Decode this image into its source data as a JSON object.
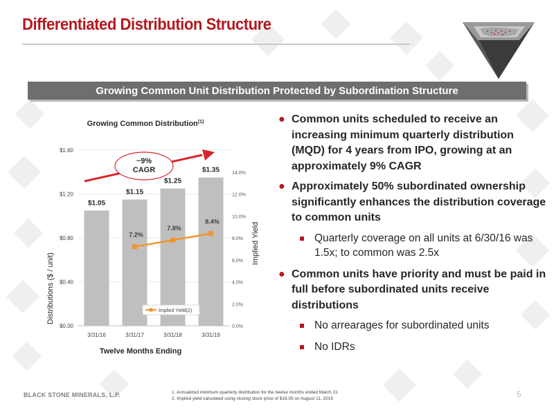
{
  "slide": {
    "title": "Differentiated Distribution Structure",
    "banner": "Growing Common Unit Distribution Protected by Subordination Structure",
    "page_number": "5",
    "company": "BLACK STONE MINERALS, L.P.",
    "footnotes": [
      "1.   Annualized minimum quarterly distribution for the twelve months ended March 31",
      "2.   Implied yield calculated using closing stock price of $16.05 on August 11, 2016"
    ]
  },
  "bullets": [
    {
      "level": 1,
      "text": "Common units scheduled to receive an increasing minimum quarterly distribution (MQD) for 4 years from IPO, growing at an approximately 9% CAGR"
    },
    {
      "level": 1,
      "text": "Approximately 50% subordinated ownership significantly enhances the distribution coverage to common units"
    },
    {
      "level": 2,
      "text": "Quarterly coverage on all units at 6/30/16 was 1.5x; to common was 2.5x"
    },
    {
      "level": 1,
      "text": "Common units have priority and must be paid in full before subordinated units receive distributions"
    },
    {
      "level": 2,
      "text": "No arrearages for subordinated units"
    },
    {
      "level": 2,
      "text": "No IDRs"
    }
  ],
  "chart_data": {
    "type": "bar",
    "title": "Growing Common Distribution",
    "title_superscript": "(1)",
    "xlabel": "Twelve Months Ending",
    "ylabel": "Distributions ($ / unit)",
    "ylabel_right": "Implied Yield",
    "categories": [
      "3/31/16",
      "3/31/17",
      "3/31/18",
      "3/31/19"
    ],
    "ylim": [
      0,
      1.6
    ],
    "yticks": [
      "$0.00",
      "$0.40",
      "$0.80",
      "$1.20",
      "$1.60"
    ],
    "ylim_right": [
      0,
      16
    ],
    "yticks_right": [
      "0.0%",
      "2.0%",
      "4.0%",
      "6.0%",
      "8.0%",
      "10.0%",
      "12.0%",
      "14.0%"
    ],
    "series": [
      {
        "kind": "bar",
        "values": [
          1.05,
          1.15,
          1.25,
          1.35
        ],
        "labels": [
          "$1.05",
          "$1.15",
          "$1.25",
          "$1.35"
        ],
        "color": "#bfbfbf"
      },
      {
        "kind": "line",
        "name": "Implied Yield(2)",
        "axis": "right",
        "x": [
          "3/31/17",
          "3/31/18",
          "3/31/19"
        ],
        "values": [
          7.2,
          7.8,
          8.4
        ],
        "labels": [
          "7.2%",
          "7.8%",
          "8.4%"
        ],
        "color": "#f0952b"
      }
    ],
    "annotation": {
      "lines": [
        "~9%",
        "CAGR"
      ],
      "arrow_color": "#d7262b"
    },
    "grid": true,
    "legend": "bottom-center"
  }
}
